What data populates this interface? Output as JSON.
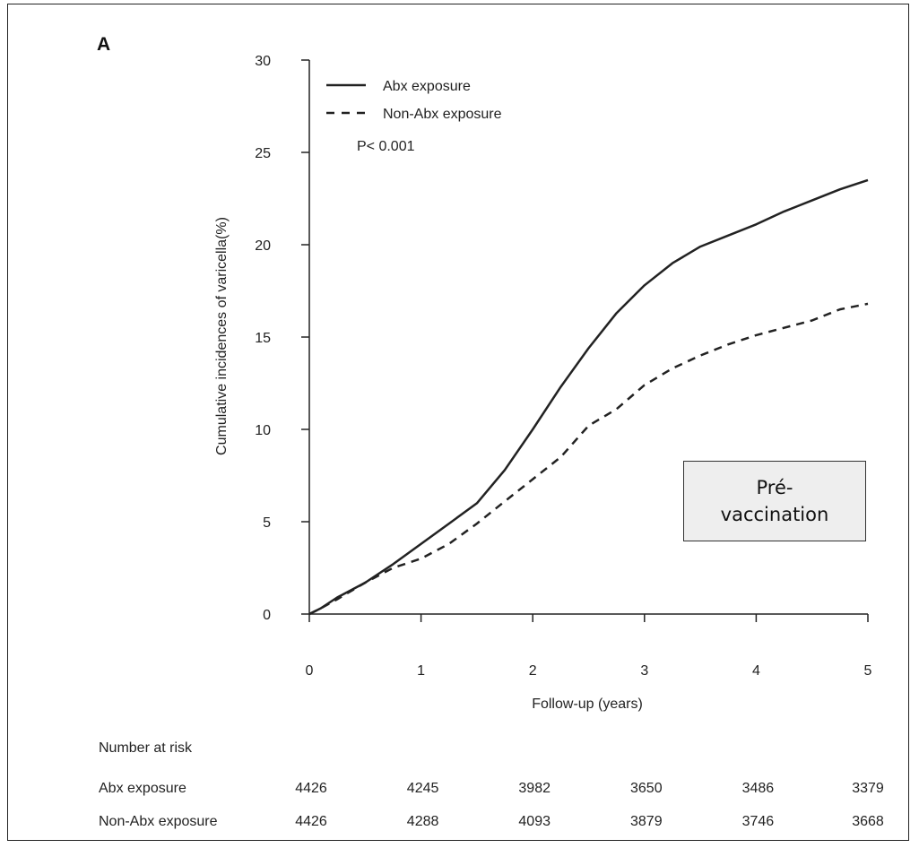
{
  "panel_label": "A",
  "annotation": {
    "line1": "Pré-",
    "line2": "vaccination"
  },
  "chart_data": {
    "type": "line",
    "title": "",
    "xlabel": "Follow-up (years)",
    "ylabel": "Cumulative incidences of varicella(%)",
    "xlim": [
      0,
      5
    ],
    "ylim": [
      0,
      30
    ],
    "x_ticks": [
      0,
      1,
      2,
      3,
      4,
      5
    ],
    "y_ticks": [
      0,
      5,
      10,
      15,
      20,
      25,
      30
    ],
    "legend_placement": "top-left",
    "annotations": [
      "P< 0.001"
    ],
    "series": [
      {
        "name": "Abx exposure",
        "style": "solid",
        "x": [
          0,
          0.1,
          0.25,
          0.5,
          0.75,
          1.0,
          1.25,
          1.5,
          1.75,
          2.0,
          2.25,
          2.5,
          2.75,
          3.0,
          3.25,
          3.5,
          3.75,
          4.0,
          4.25,
          4.5,
          4.75,
          5.0
        ],
        "y": [
          0,
          0.3,
          0.9,
          1.7,
          2.7,
          3.8,
          4.9,
          6.0,
          7.8,
          10.0,
          12.3,
          14.4,
          16.3,
          17.8,
          19.0,
          19.9,
          20.5,
          21.1,
          21.8,
          22.4,
          23.0,
          23.5
        ]
      },
      {
        "name": "Non-Abx exposure",
        "style": "dashed",
        "x": [
          0,
          0.1,
          0.25,
          0.5,
          0.75,
          1.0,
          1.25,
          1.5,
          1.75,
          2.0,
          2.25,
          2.5,
          2.75,
          3.0,
          3.25,
          3.5,
          3.75,
          4.0,
          4.25,
          4.5,
          4.75,
          5.0
        ],
        "y": [
          0,
          0.3,
          0.8,
          1.7,
          2.5,
          3.0,
          3.8,
          4.9,
          6.1,
          7.3,
          8.5,
          10.2,
          11.1,
          12.4,
          13.3,
          14.0,
          14.6,
          15.1,
          15.5,
          15.9,
          16.5,
          16.8
        ]
      }
    ],
    "risk_table": {
      "title": "Number at risk",
      "rows": [
        {
          "label": "Abx exposure",
          "values": [
            "4426",
            "4245",
            "3982",
            "3650",
            "3486",
            "3379"
          ]
        },
        {
          "label": "Non-Abx exposure",
          "values": [
            "4426",
            "4288",
            "4093",
            "3879",
            "3746",
            "3668"
          ]
        }
      ]
    }
  }
}
